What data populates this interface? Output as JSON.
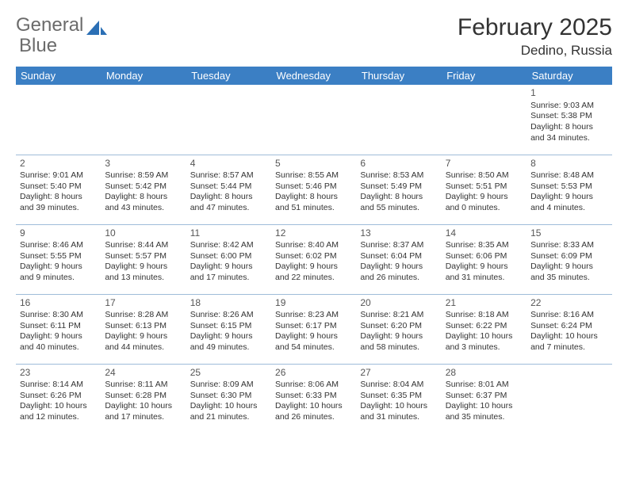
{
  "brand": {
    "name1": "General",
    "name2": "Blue",
    "logo_color": "#2b6fb5"
  },
  "title": "February 2025",
  "location": "Dedino, Russia",
  "header_color": "#3b7fc4",
  "divider_color": "#9fbcd9",
  "weekdays": [
    "Sunday",
    "Monday",
    "Tuesday",
    "Wednesday",
    "Thursday",
    "Friday",
    "Saturday"
  ],
  "weeks": [
    [
      null,
      null,
      null,
      null,
      null,
      null,
      {
        "n": "1",
        "sr": "9:03 AM",
        "ss": "5:38 PM",
        "dl": "8 hours and 34 minutes."
      }
    ],
    [
      {
        "n": "2",
        "sr": "9:01 AM",
        "ss": "5:40 PM",
        "dl": "8 hours and 39 minutes."
      },
      {
        "n": "3",
        "sr": "8:59 AM",
        "ss": "5:42 PM",
        "dl": "8 hours and 43 minutes."
      },
      {
        "n": "4",
        "sr": "8:57 AM",
        "ss": "5:44 PM",
        "dl": "8 hours and 47 minutes."
      },
      {
        "n": "5",
        "sr": "8:55 AM",
        "ss": "5:46 PM",
        "dl": "8 hours and 51 minutes."
      },
      {
        "n": "6",
        "sr": "8:53 AM",
        "ss": "5:49 PM",
        "dl": "8 hours and 55 minutes."
      },
      {
        "n": "7",
        "sr": "8:50 AM",
        "ss": "5:51 PM",
        "dl": "9 hours and 0 minutes."
      },
      {
        "n": "8",
        "sr": "8:48 AM",
        "ss": "5:53 PM",
        "dl": "9 hours and 4 minutes."
      }
    ],
    [
      {
        "n": "9",
        "sr": "8:46 AM",
        "ss": "5:55 PM",
        "dl": "9 hours and 9 minutes."
      },
      {
        "n": "10",
        "sr": "8:44 AM",
        "ss": "5:57 PM",
        "dl": "9 hours and 13 minutes."
      },
      {
        "n": "11",
        "sr": "8:42 AM",
        "ss": "6:00 PM",
        "dl": "9 hours and 17 minutes."
      },
      {
        "n": "12",
        "sr": "8:40 AM",
        "ss": "6:02 PM",
        "dl": "9 hours and 22 minutes."
      },
      {
        "n": "13",
        "sr": "8:37 AM",
        "ss": "6:04 PM",
        "dl": "9 hours and 26 minutes."
      },
      {
        "n": "14",
        "sr": "8:35 AM",
        "ss": "6:06 PM",
        "dl": "9 hours and 31 minutes."
      },
      {
        "n": "15",
        "sr": "8:33 AM",
        "ss": "6:09 PM",
        "dl": "9 hours and 35 minutes."
      }
    ],
    [
      {
        "n": "16",
        "sr": "8:30 AM",
        "ss": "6:11 PM",
        "dl": "9 hours and 40 minutes."
      },
      {
        "n": "17",
        "sr": "8:28 AM",
        "ss": "6:13 PM",
        "dl": "9 hours and 44 minutes."
      },
      {
        "n": "18",
        "sr": "8:26 AM",
        "ss": "6:15 PM",
        "dl": "9 hours and 49 minutes."
      },
      {
        "n": "19",
        "sr": "8:23 AM",
        "ss": "6:17 PM",
        "dl": "9 hours and 54 minutes."
      },
      {
        "n": "20",
        "sr": "8:21 AM",
        "ss": "6:20 PM",
        "dl": "9 hours and 58 minutes."
      },
      {
        "n": "21",
        "sr": "8:18 AM",
        "ss": "6:22 PM",
        "dl": "10 hours and 3 minutes."
      },
      {
        "n": "22",
        "sr": "8:16 AM",
        "ss": "6:24 PM",
        "dl": "10 hours and 7 minutes."
      }
    ],
    [
      {
        "n": "23",
        "sr": "8:14 AM",
        "ss": "6:26 PM",
        "dl": "10 hours and 12 minutes."
      },
      {
        "n": "24",
        "sr": "8:11 AM",
        "ss": "6:28 PM",
        "dl": "10 hours and 17 minutes."
      },
      {
        "n": "25",
        "sr": "8:09 AM",
        "ss": "6:30 PM",
        "dl": "10 hours and 21 minutes."
      },
      {
        "n": "26",
        "sr": "8:06 AM",
        "ss": "6:33 PM",
        "dl": "10 hours and 26 minutes."
      },
      {
        "n": "27",
        "sr": "8:04 AM",
        "ss": "6:35 PM",
        "dl": "10 hours and 31 minutes."
      },
      {
        "n": "28",
        "sr": "8:01 AM",
        "ss": "6:37 PM",
        "dl": "10 hours and 35 minutes."
      },
      null
    ]
  ],
  "labels": {
    "sunrise": "Sunrise:",
    "sunset": "Sunset:",
    "daylight": "Daylight:"
  }
}
